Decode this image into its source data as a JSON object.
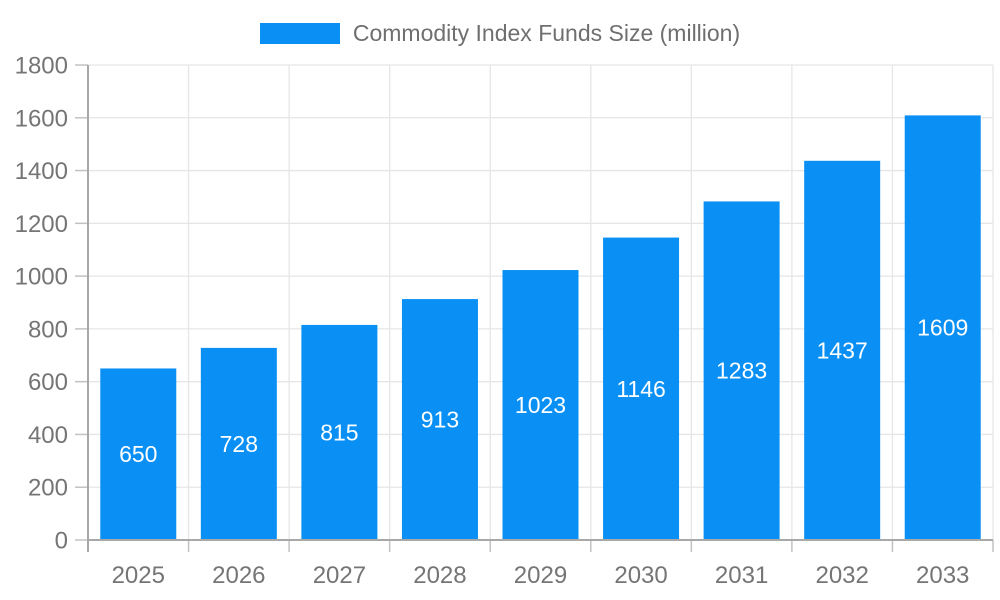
{
  "chart_data": {
    "type": "bar",
    "title": "Commodity Index Funds Size (million)",
    "categories": [
      "2025",
      "2026",
      "2027",
      "2028",
      "2029",
      "2030",
      "2031",
      "2032",
      "2033"
    ],
    "values": [
      650,
      728,
      815,
      913,
      1023,
      1146,
      1283,
      1437,
      1609
    ],
    "xlabel": "",
    "ylabel": "",
    "ylim": [
      0,
      1800
    ],
    "ytick_interval": 200,
    "yticks": [
      "0",
      "200",
      "400",
      "600",
      "800",
      "1000",
      "1200",
      "1400",
      "1600",
      "1800"
    ],
    "grid": true,
    "legend_position": "top-center",
    "value_labels_inside": true,
    "colors": {
      "bar": "#0a90f4",
      "value_label": "#ffffff",
      "axis_text": "#757575",
      "legend_text": "#6f6f6f",
      "gridline": "#e6e6e6",
      "axis_line": "#a8a8a8",
      "tick": "#c2c2c2",
      "background": "#ffffff"
    }
  }
}
